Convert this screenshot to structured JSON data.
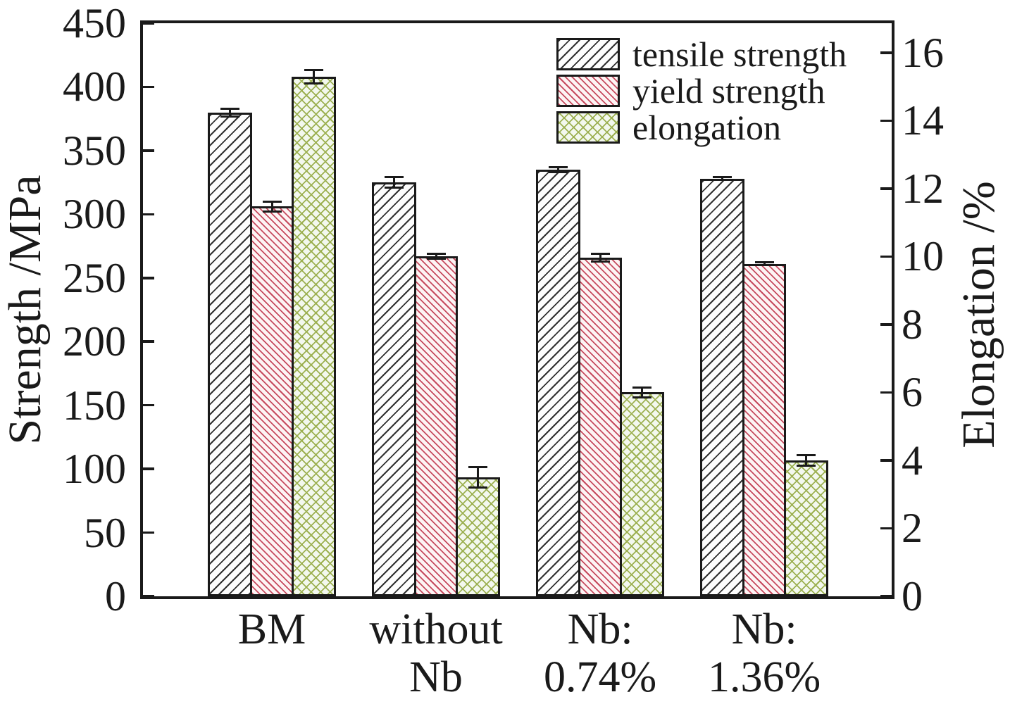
{
  "chart_data": {
    "type": "bar",
    "title": "",
    "categories": [
      "BM",
      "without\nNb",
      "Nb:\n0.74%",
      "Nb:\n1.36%"
    ],
    "left_axis": {
      "label": "Strength /MPa",
      "min": 0,
      "max": 450,
      "ticks": [
        0,
        50,
        100,
        150,
        200,
        250,
        300,
        350,
        400,
        450
      ]
    },
    "right_axis": {
      "label": "Elongation /%",
      "min": 0,
      "max": 16,
      "ticks": [
        0,
        2,
        4,
        6,
        8,
        10,
        12,
        14,
        16
      ],
      "plot_top_value": 16.87
    },
    "series": [
      {
        "name": "tensile strength",
        "axis": "left",
        "pattern": "tensile",
        "hatch_color": "#222222",
        "fill": "#fdfdfd",
        "values": [
          380,
          325,
          335,
          328
        ],
        "errors": [
          3,
          4,
          2,
          1
        ]
      },
      {
        "name": "yield strength",
        "axis": "left",
        "pattern": "yield",
        "hatch_color": "#c64a5e",
        "fill": "#fdf4f4",
        "values": [
          306,
          267,
          266,
          261
        ],
        "errors": [
          4,
          2,
          3,
          1
        ]
      },
      {
        "name": "elongation",
        "axis": "right",
        "pattern": "elong",
        "hatch_color": "#9cb051",
        "fill": "#f3f8ee",
        "values": [
          15.3,
          3.5,
          6.0,
          4.0
        ],
        "errors": [
          0.2,
          0.3,
          0.15,
          0.15
        ]
      }
    ],
    "legend": {
      "position": "top-right-inside",
      "entries": [
        "tensile strength",
        "yield strength",
        "elongation"
      ]
    },
    "grid": false
  }
}
